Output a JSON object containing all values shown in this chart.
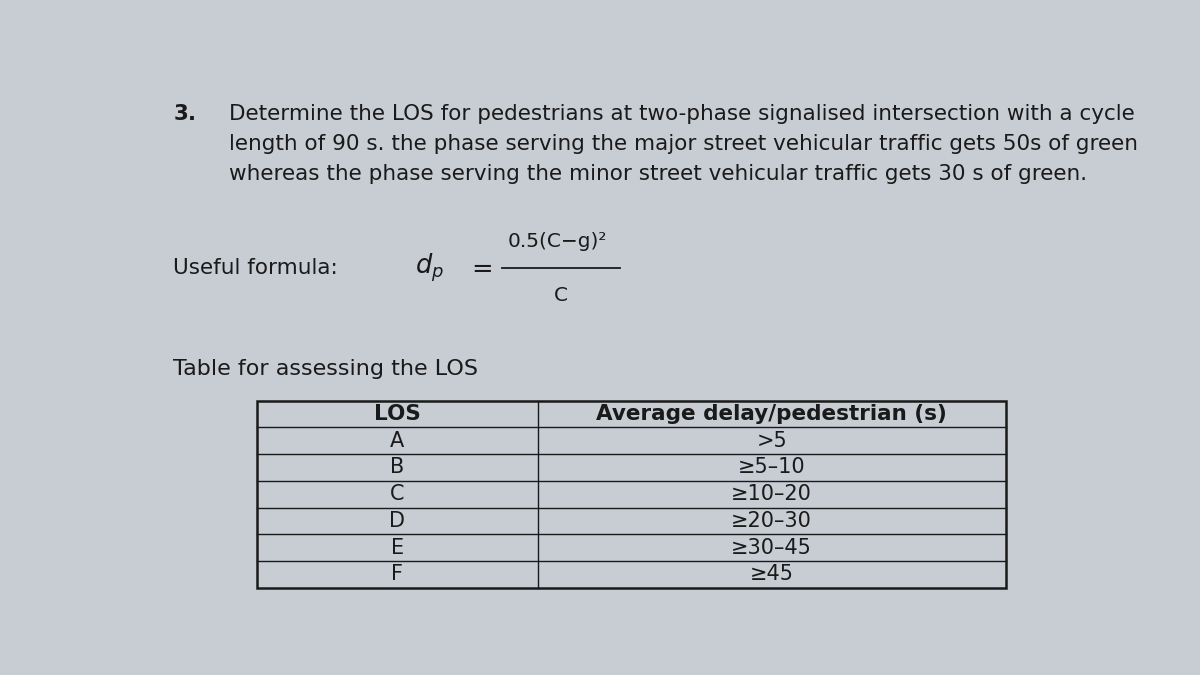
{
  "background_color": "#c8cdd4",
  "question_number": "3.",
  "question_text": "Determine the LOS for pedestrians at two-phase signalised intersection with a cycle\nlength of 90 s. the phase serving the major street vehicular traffic gets 50s of green\nwhereas the phase serving the minor street vehicular traffic gets 30 s of green.",
  "formula_label": "Useful formula:",
  "formula_numerator": "0.5(C−g)²",
  "formula_denominator": "C",
  "table_title": "Table for assessing the LOS",
  "col1_header": "LOS",
  "col2_header": "Average delay/pedestrian (s)",
  "los_values": [
    "A",
    "B",
    "C",
    "D",
    "E",
    "F"
  ],
  "delay_values": [
    ">5",
    "≥5–10",
    "≥10–20",
    "≥20–30",
    "≥30–45",
    "≥45"
  ],
  "text_color": "#1a1a1a",
  "font_size_question": 15.5,
  "font_size_formula_label": 15.5,
  "font_size_formula": 14.5,
  "font_size_table_title": 16,
  "font_size_table_header": 15.5,
  "font_size_table_body": 15
}
